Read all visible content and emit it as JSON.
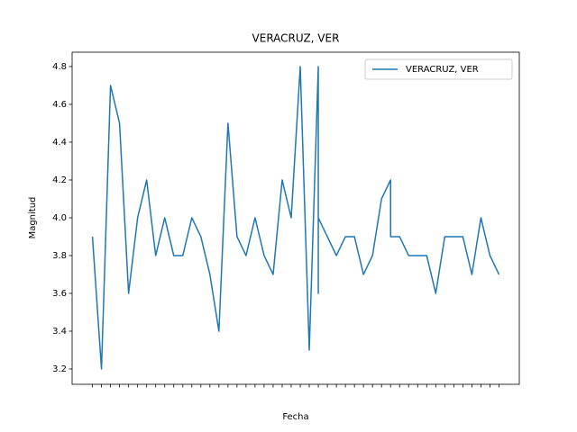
{
  "chart_data": {
    "type": "line",
    "title": "VERACRUZ, VER",
    "x_label": "Fecha",
    "y_label": "Magnitud",
    "categories": [
      null,
      null,
      null,
      null,
      null,
      null,
      null,
      null,
      null,
      null,
      null,
      null,
      null,
      null,
      null,
      null,
      null,
      null,
      null,
      null,
      null,
      null,
      null,
      null,
      null,
      null,
      null,
      null,
      null,
      null,
      null,
      null,
      null,
      null,
      null,
      null,
      null,
      null,
      null,
      null,
      null,
      null,
      null,
      null,
      null,
      null
    ],
    "series": [
      {
        "name": "VERACRUZ, VER",
        "color": "#1f77b4",
        "x": [
          0,
          1,
          2,
          3,
          4,
          5,
          6,
          7,
          8,
          9,
          10,
          11,
          12,
          13,
          14,
          15,
          16,
          17,
          18,
          19,
          20,
          21,
          22,
          23,
          24,
          25,
          25,
          25,
          26,
          27,
          28,
          29,
          30,
          31,
          32,
          33,
          33,
          34,
          35,
          36,
          37,
          38,
          39,
          40,
          41,
          42,
          43,
          44,
          45
        ],
        "values": [
          3.9,
          3.2,
          4.7,
          4.5,
          3.6,
          4.0,
          4.2,
          3.8,
          4.0,
          3.8,
          3.8,
          4.0,
          3.9,
          3.7,
          3.4,
          4.5,
          3.9,
          3.8,
          4.0,
          3.8,
          3.7,
          4.2,
          4.0,
          4.8,
          3.3,
          4.8,
          3.6,
          4.0,
          3.9,
          3.8,
          3.9,
          3.9,
          3.7,
          3.8,
          4.1,
          4.2,
          3.9,
          3.9,
          3.8,
          3.8,
          3.8,
          3.6,
          3.9,
          3.9,
          3.9,
          3.7,
          4.0,
          3.8,
          3.7
        ]
      }
    ],
    "xlim": [
      -2.25,
      47.25
    ],
    "ylim": [
      3.119,
      4.876
    ],
    "yticks": [
      3.2,
      3.4,
      3.6,
      3.8,
      {
        "value": 4,
        "label": "4.0"
      },
      4.2,
      4.4,
      4.6,
      4.8
    ],
    "legend": "upper right"
  }
}
